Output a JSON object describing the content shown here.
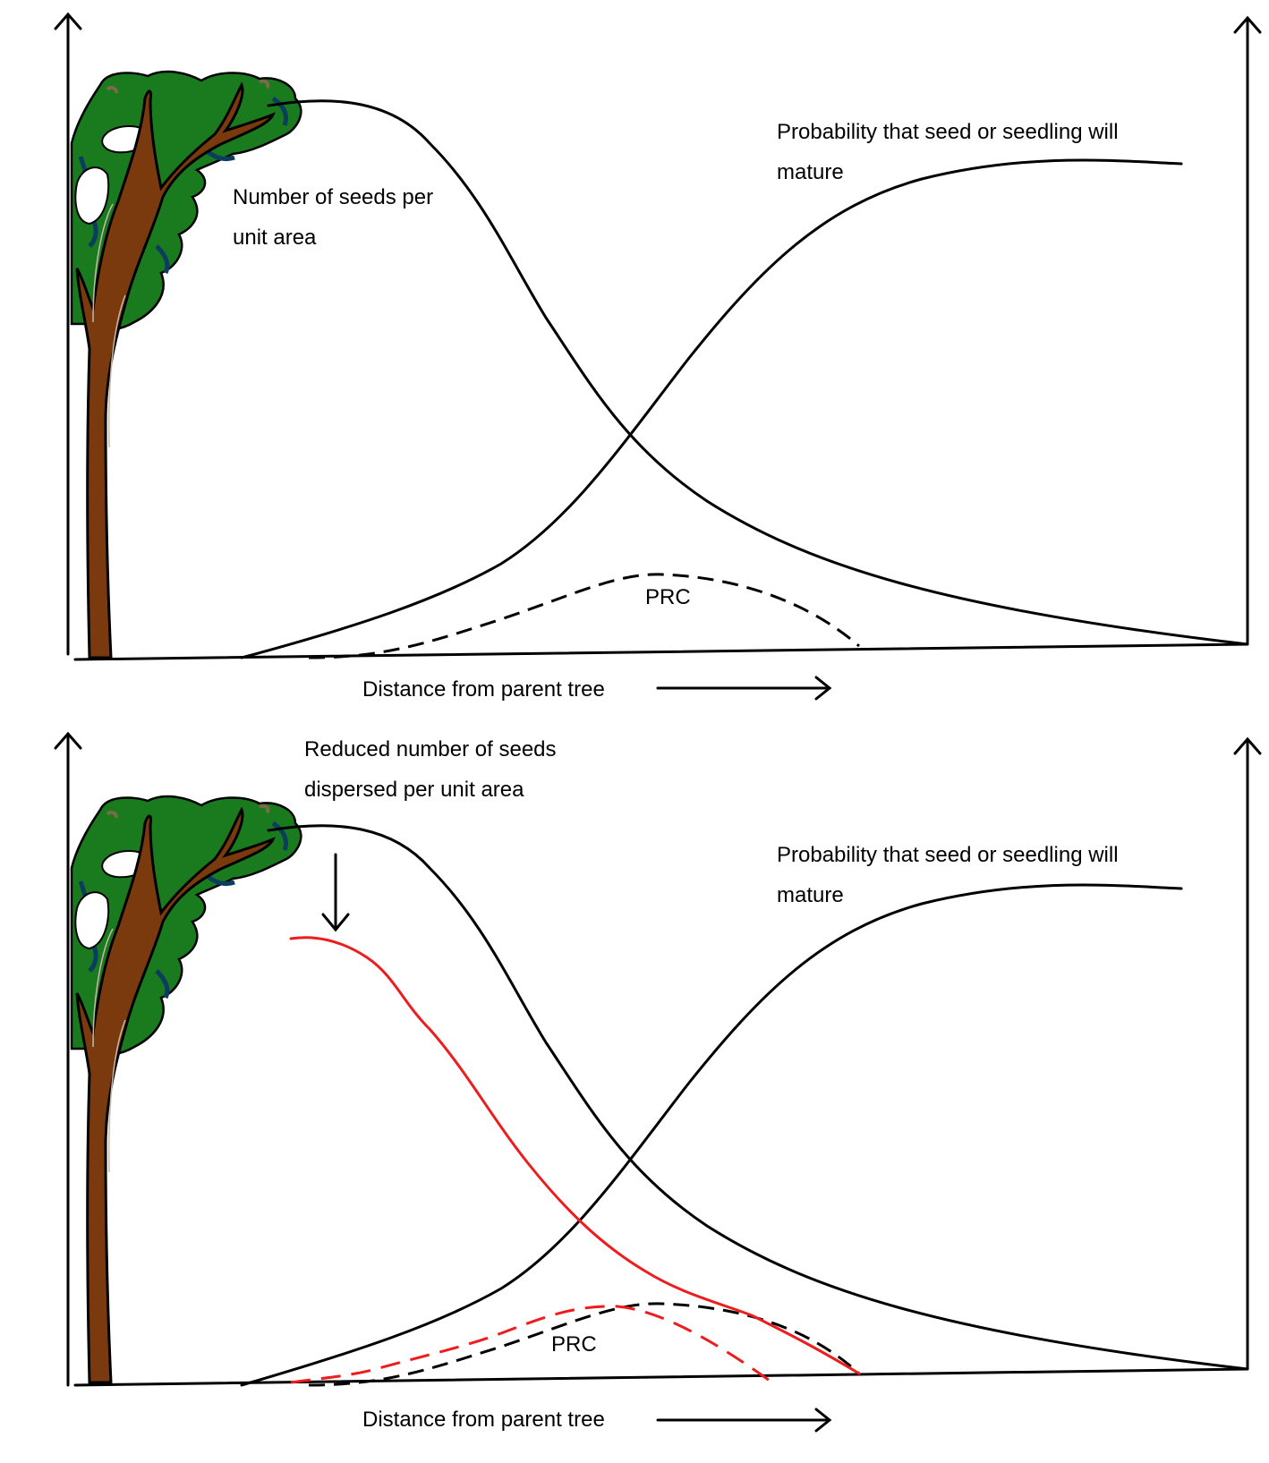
{
  "panel_top": {
    "seeds_label_line1": "Number of seeds per",
    "seeds_label_line2": "unit area",
    "probability_label_line1": "Probability that seed or seedling will",
    "probability_label_line2": "mature",
    "prc_label": "PRC",
    "x_axis_label": "Distance from parent tree"
  },
  "panel_bottom": {
    "reduced_label_line1": "Reduced number of seeds",
    "reduced_label_line2": "dispersed per unit area",
    "probability_label_line1": "Probability that seed or seedling will",
    "probability_label_line2": "mature",
    "prc_label": "PRC",
    "x_axis_label": "Distance from parent tree"
  },
  "colors": {
    "reduced_curve": "#ee1c1c",
    "tree_trunk": "#7a3a0e",
    "tree_foliage": "#1a7a1e",
    "foliage_shadow": "#0b3e5e"
  }
}
